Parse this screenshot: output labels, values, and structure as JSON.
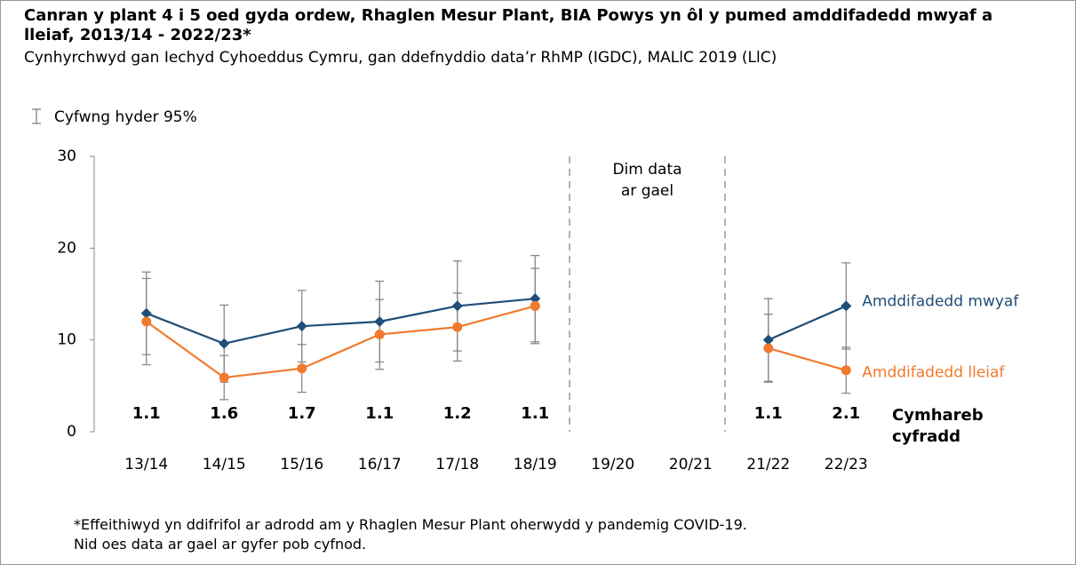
{
  "chart_data": {
    "type": "line",
    "title": "Canran y plant 4 i 5 oed gyda ordew, Rhaglen Mesur Plant, BIA Powys yn ôl y pumed amddifadedd mwyaf a lleiaf, 2013/14 - 2022/23*",
    "subtitle": "Cynhyrchwyd gan Iechyd Cyhoeddus Cymru, gan ddefnyddio data’r RhMP (IGDC), MALlC 2019 (LlC)",
    "error_legend": "Cyfwng hyder 95%",
    "categories": [
      "13/14",
      "14/15",
      "15/16",
      "16/17",
      "17/18",
      "18/19",
      "19/20",
      "20/21",
      "21/22",
      "22/23"
    ],
    "series": [
      {
        "name": "Amddifadedd mwyaf",
        "color": "#1f4e79",
        "marker": "diamond",
        "values": [
          12.9,
          9.6,
          11.5,
          12.0,
          13.7,
          14.5,
          null,
          null,
          10.0,
          13.7
        ],
        "errors": [
          4.5,
          4.2,
          3.9,
          4.4,
          4.9,
          4.7,
          null,
          null,
          4.5,
          4.7
        ]
      },
      {
        "name": "Amddifadedd lleiaf",
        "color": "#f07a2e",
        "marker": "circle",
        "values": [
          12.0,
          5.9,
          6.9,
          10.6,
          11.4,
          13.7,
          null,
          null,
          9.1,
          6.7
        ],
        "errors": [
          4.7,
          2.4,
          2.6,
          3.8,
          3.7,
          4.1,
          null,
          null,
          3.7,
          2.5
        ]
      }
    ],
    "ratio_label": [
      "Cymhareb",
      "cyfradd"
    ],
    "ratios": [
      1.1,
      1.6,
      1.7,
      1.1,
      1.2,
      1.1,
      null,
      null,
      1.1,
      2.1
    ],
    "gap_annotation": [
      "Dim data",
      "ar gael"
    ],
    "ylim": [
      0,
      30
    ],
    "yticks": [
      0,
      10,
      20,
      30
    ],
    "footnote": [
      "*Effeithiwyd yn ddifrifol ar adrodd am y Rhaglen Mesur Plant oherwydd y pandemig COVID-19.",
      "Nid oes data ar gael ar gyfer pob cyfnod."
    ]
  }
}
